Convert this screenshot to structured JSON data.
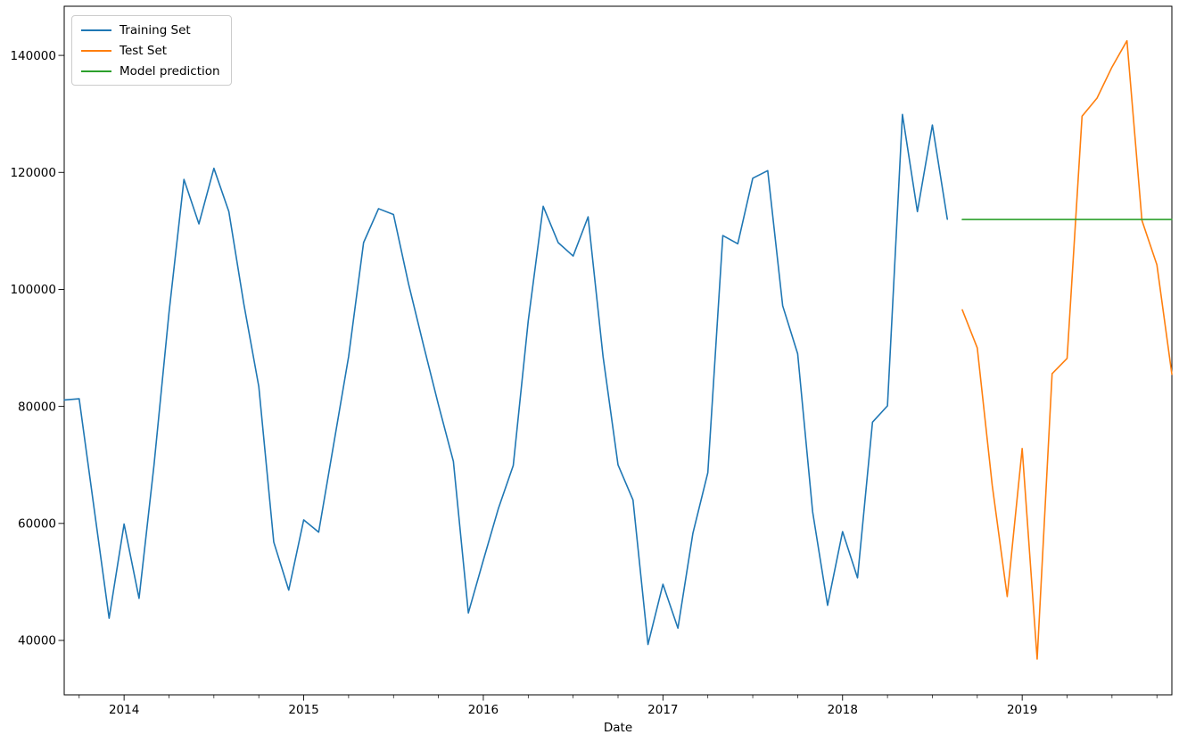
{
  "chart": {
    "xlabel": "Date",
    "legend": [
      {
        "label": "Training Set",
        "color": "#1f77b4"
      },
      {
        "label": "Test Set",
        "color": "#ff7f0e"
      },
      {
        "label": "Model prediction",
        "color": "#2ca02c"
      }
    ]
  },
  "chart_data": {
    "type": "line",
    "title": "",
    "xlabel": "Date",
    "ylabel": "",
    "x_start": "2013-09",
    "x_end": "2019-11",
    "ylim": [
      30700,
      148400
    ],
    "y_ticks": [
      40000,
      60000,
      80000,
      100000,
      120000,
      140000
    ],
    "x_ticks": [
      2014,
      2015,
      2016,
      2017,
      2018,
      2019
    ],
    "minor_x_tick_months": [
      4,
      7,
      10
    ],
    "grid": false,
    "legend_position": "upper-left",
    "series": [
      {
        "name": "Training Set",
        "color": "#1f77b4",
        "points": [
          [
            "2013-09",
            81100
          ],
          [
            "2013-10",
            81300
          ],
          [
            "2013-11",
            62500
          ],
          [
            "2013-12",
            43800
          ],
          [
            "2014-01",
            59900
          ],
          [
            "2014-02",
            47200
          ],
          [
            "2014-03",
            70000
          ],
          [
            "2014-04",
            96000
          ],
          [
            "2014-05",
            118800
          ],
          [
            "2014-06",
            111200
          ],
          [
            "2014-07",
            120700
          ],
          [
            "2014-08",
            113300
          ],
          [
            "2014-09",
            97500
          ],
          [
            "2014-10",
            83400
          ],
          [
            "2014-11",
            56800
          ],
          [
            "2014-12",
            48600
          ],
          [
            "2015-01",
            60600
          ],
          [
            "2015-02",
            58500
          ],
          [
            "2015-03",
            73500
          ],
          [
            "2015-04",
            88500
          ],
          [
            "2015-05",
            108000
          ],
          [
            "2015-06",
            113800
          ],
          [
            "2015-07",
            112800
          ],
          [
            "2015-08",
            101000
          ],
          [
            "2015-09",
            90500
          ],
          [
            "2015-10",
            80300
          ],
          [
            "2015-11",
            70600
          ],
          [
            "2015-12",
            44700
          ],
          [
            "2016-01",
            53700
          ],
          [
            "2016-02",
            62500
          ],
          [
            "2016-03",
            69900
          ],
          [
            "2016-04",
            94600
          ],
          [
            "2016-05",
            114200
          ],
          [
            "2016-06",
            108000
          ],
          [
            "2016-07",
            105700
          ],
          [
            "2016-08",
            112400
          ],
          [
            "2016-09",
            88500
          ],
          [
            "2016-10",
            70000
          ],
          [
            "2016-11",
            64000
          ],
          [
            "2016-12",
            39300
          ],
          [
            "2017-01",
            49600
          ],
          [
            "2017-02",
            42100
          ],
          [
            "2017-03",
            58300
          ],
          [
            "2017-04",
            68700
          ],
          [
            "2017-05",
            109200
          ],
          [
            "2017-06",
            107800
          ],
          [
            "2017-07",
            119000
          ],
          [
            "2017-08",
            120300
          ],
          [
            "2017-09",
            97200
          ],
          [
            "2017-10",
            89000
          ],
          [
            "2017-11",
            62000
          ],
          [
            "2017-12",
            46000
          ],
          [
            "2018-01",
            58600
          ],
          [
            "2018-02",
            50700
          ],
          [
            "2018-03",
            77300
          ],
          [
            "2018-04",
            80100
          ],
          [
            "2018-05",
            129900
          ],
          [
            "2018-06",
            113300
          ],
          [
            "2018-07",
            128100
          ],
          [
            "2018-08",
            112000
          ]
        ]
      },
      {
        "name": "Test Set",
        "color": "#ff7f0e",
        "points": [
          [
            "2018-09",
            96500
          ],
          [
            "2018-10",
            90000
          ],
          [
            "2018-11",
            66500
          ],
          [
            "2018-12",
            47500
          ],
          [
            "2019-01",
            72800
          ],
          [
            "2019-02",
            36800
          ],
          [
            "2019-03",
            85600
          ],
          [
            "2019-04",
            88200
          ],
          [
            "2019-05",
            129600
          ],
          [
            "2019-06",
            132700
          ],
          [
            "2019-07",
            138000
          ],
          [
            "2019-08",
            142500
          ],
          [
            "2019-09",
            111800
          ],
          [
            "2019-10",
            104200
          ],
          [
            "2019-11",
            85500
          ]
        ]
      },
      {
        "name": "Model prediction",
        "color": "#2ca02c",
        "points": [
          [
            "2018-09",
            111950
          ],
          [
            "2018-10",
            111950
          ],
          [
            "2018-11",
            111950
          ],
          [
            "2018-12",
            111950
          ],
          [
            "2019-01",
            111950
          ],
          [
            "2019-02",
            111950
          ],
          [
            "2019-03",
            111950
          ],
          [
            "2019-04",
            111950
          ],
          [
            "2019-05",
            111950
          ],
          [
            "2019-06",
            111950
          ],
          [
            "2019-07",
            111950
          ],
          [
            "2019-08",
            111950
          ],
          [
            "2019-09",
            111950
          ],
          [
            "2019-10",
            111950
          ],
          [
            "2019-11",
            111950
          ]
        ]
      }
    ]
  }
}
